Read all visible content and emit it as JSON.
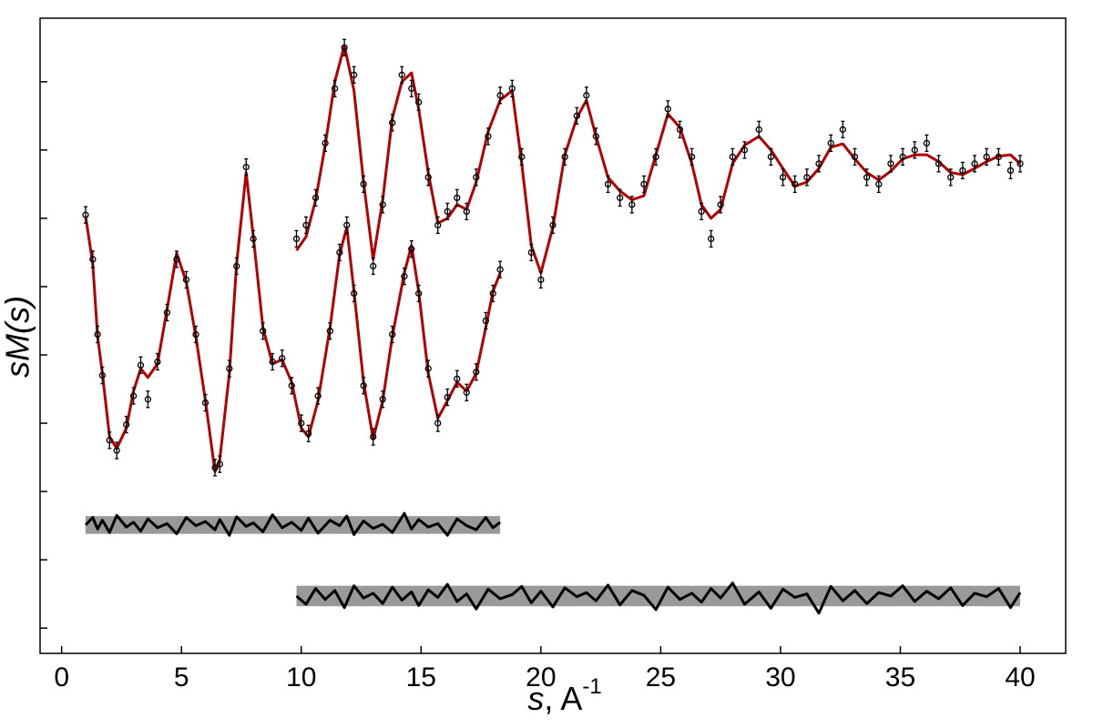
{
  "chart_data": {
    "type": "line",
    "xlabel": {
      "symbol": "s",
      "unit": ", A",
      "power": "-1"
    },
    "ylabel": "sM(s)",
    "xlim": [
      -0.9,
      41.9
    ],
    "ylim": [
      -0.37,
      8.93
    ],
    "xticks": [
      0,
      5,
      10,
      15,
      20,
      25,
      30,
      35,
      40
    ],
    "yticks": [
      0,
      1,
      2,
      3,
      4,
      5,
      6,
      7,
      8
    ],
    "ytick_labels": false,
    "series": [
      {
        "marker": "none",
        "color": "#b40000",
        "x": [
          1,
          1.3,
          1.5,
          1.7,
          2,
          2.3,
          2.7,
          3,
          3.3,
          3.6,
          4,
          4.4,
          4.8,
          5.2,
          5.6,
          6,
          6.4,
          6.6,
          7,
          7.3,
          7.7,
          8,
          8.4,
          8.8,
          9.2,
          9.6,
          10,
          10.3,
          10.7,
          11.2,
          11.6,
          11.9,
          12.2,
          12.6,
          13,
          13.4,
          13.8,
          14.3,
          14.6,
          14.9,
          15.3,
          15.7,
          16.1,
          16.5,
          16.9,
          17.3,
          17.7,
          18,
          18.3
        ],
        "values": [
          6.03,
          5.33,
          4.27,
          3.73,
          2.8,
          2.63,
          2.93,
          3.47,
          3.8,
          3.67,
          3.87,
          4.67,
          5.49,
          5.07,
          4.27,
          3.33,
          2.29,
          2.47,
          3.73,
          5.33,
          6.67,
          5.73,
          4.4,
          3.87,
          3.93,
          3.6,
          2.93,
          2.8,
          3.33,
          4.4,
          5.47,
          5.87,
          4.93,
          3.6,
          2.77,
          3.33,
          4.27,
          5.2,
          5.6,
          4.93,
          3.73,
          3.07,
          3.33,
          3.6,
          3.47,
          3.73,
          4.4,
          4.93,
          5.2
        ]
      },
      {
        "marker": "circle",
        "color": "#000000",
        "error": 0.12,
        "x": [
          1,
          1.3,
          1.5,
          1.7,
          2,
          2.3,
          2.7,
          3,
          3.3,
          3.6,
          4,
          4.4,
          4.8,
          5.2,
          5.6,
          6,
          6.4,
          6.6,
          7,
          7.3,
          7.7,
          8,
          8.4,
          8.8,
          9.2,
          9.6,
          10,
          10.3,
          10.7,
          11.2,
          11.6,
          11.9,
          12.2,
          12.6,
          13,
          13.4,
          13.8,
          14.3,
          14.6,
          14.9,
          15.3,
          15.7,
          16.1,
          16.5,
          16.9,
          17.3,
          17.7,
          18,
          18.3
        ],
        "values": [
          6.05,
          5.4,
          4.3,
          3.7,
          2.75,
          2.6,
          2.98,
          3.4,
          3.85,
          3.35,
          3.9,
          4.62,
          5.4,
          5.1,
          4.3,
          3.3,
          2.35,
          2.4,
          3.8,
          5.3,
          6.75,
          5.7,
          4.35,
          3.9,
          3.95,
          3.55,
          3.0,
          2.85,
          3.4,
          4.35,
          5.5,
          5.9,
          4.9,
          3.55,
          2.8,
          3.35,
          4.3,
          5.15,
          5.55,
          4.9,
          3.8,
          3.0,
          3.38,
          3.65,
          3.45,
          3.75,
          4.5,
          4.9,
          5.25
        ]
      },
      {
        "marker": "none",
        "color": "#b40000",
        "x": [
          9.8,
          10.2,
          10.6,
          11,
          11.4,
          11.8,
          12.2,
          12.6,
          13,
          13.4,
          13.8,
          14.2,
          14.6,
          14.9,
          15.3,
          15.7,
          16.1,
          16.5,
          16.9,
          17.3,
          17.8,
          18.3,
          18.8,
          19.2,
          19.6,
          20,
          20.5,
          21,
          21.5,
          21.9,
          22.3,
          22.8,
          23.3,
          23.8,
          24.3,
          24.8,
          25.3,
          25.8,
          26.3,
          26.7,
          27.1,
          27.5,
          28,
          28.5,
          29.1,
          29.6,
          30.1,
          30.6,
          31.1,
          31.6,
          32.1,
          32.6,
          33.1,
          33.6,
          34.1,
          34.6,
          35.1,
          35.6,
          36.1,
          36.6,
          37.1,
          37.6,
          38.1,
          38.6,
          39.1,
          39.6,
          40
        ],
        "values": [
          5.53,
          5.73,
          6.27,
          7.07,
          8.0,
          8.53,
          7.87,
          6.53,
          5.4,
          6.27,
          7.47,
          8.0,
          8.13,
          7.6,
          6.67,
          5.93,
          6.0,
          6.2,
          6.13,
          6.53,
          7.27,
          7.73,
          7.87,
          6.8,
          5.6,
          5.2,
          5.87,
          6.93,
          7.47,
          7.73,
          7.2,
          6.6,
          6.4,
          6.27,
          6.33,
          6.93,
          7.53,
          7.33,
          6.8,
          6.2,
          6.0,
          6.13,
          6.8,
          7.07,
          7.2,
          7.0,
          6.73,
          6.47,
          6.53,
          6.73,
          7.04,
          7.09,
          6.87,
          6.67,
          6.56,
          6.69,
          6.87,
          6.93,
          6.93,
          6.83,
          6.67,
          6.64,
          6.73,
          6.83,
          6.91,
          6.93,
          6.8
        ]
      },
      {
        "marker": "circle",
        "color": "#000000",
        "error": 0.12,
        "x": [
          9.8,
          10.2,
          10.6,
          11,
          11.4,
          11.8,
          12.2,
          12.6,
          13,
          13.4,
          13.8,
          14.2,
          14.6,
          14.9,
          15.3,
          15.7,
          16.1,
          16.5,
          16.9,
          17.3,
          17.8,
          18.3,
          18.8,
          19.2,
          19.6,
          20,
          20.5,
          21,
          21.5,
          21.9,
          22.3,
          22.8,
          23.3,
          23.8,
          24.3,
          24.8,
          25.3,
          25.8,
          26.3,
          26.7,
          27.1,
          27.5,
          28,
          28.5,
          29.1,
          29.6,
          30.1,
          30.6,
          31.1,
          31.6,
          32.1,
          32.6,
          33.1,
          33.6,
          34.1,
          34.6,
          35.1,
          35.6,
          36.1,
          36.6,
          37.1,
          37.6,
          38.1,
          38.6,
          39.1,
          39.6,
          40
        ],
        "values": [
          5.7,
          5.9,
          6.3,
          7.1,
          7.9,
          8.5,
          8.1,
          6.5,
          5.3,
          6.2,
          7.4,
          8.1,
          7.9,
          7.7,
          6.6,
          5.9,
          6.1,
          6.3,
          6.1,
          6.6,
          7.2,
          7.8,
          7.9,
          6.9,
          5.5,
          5.1,
          5.9,
          6.9,
          7.5,
          7.8,
          7.2,
          6.5,
          6.3,
          6.2,
          6.5,
          6.9,
          7.6,
          7.3,
          6.9,
          6.1,
          5.7,
          6.2,
          6.9,
          7.0,
          7.3,
          6.9,
          6.6,
          6.5,
          6.6,
          6.8,
          7.1,
          7.3,
          6.9,
          6.6,
          6.5,
          6.8,
          6.9,
          7.0,
          7.1,
          6.8,
          6.6,
          6.7,
          6.8,
          6.9,
          6.9,
          6.7,
          6.8
        ]
      },
      {
        "marker": "none",
        "color": "#000000",
        "band": [
          1.38,
          1.64
        ],
        "band_color": "#999999",
        "x": [
          1,
          1.3,
          1.5,
          1.7,
          2,
          2.3,
          2.7,
          3,
          3.3,
          3.6,
          4,
          4.4,
          4.8,
          5.2,
          5.6,
          6,
          6.4,
          6.6,
          7,
          7.3,
          7.7,
          8,
          8.4,
          8.8,
          9.2,
          9.6,
          10,
          10.3,
          10.7,
          11.2,
          11.6,
          11.9,
          12.2,
          12.6,
          13,
          13.4,
          13.8,
          14.3,
          14.6,
          14.9,
          15.3,
          15.7,
          16.1,
          16.5,
          16.9,
          17.3,
          17.7,
          18,
          18.3
        ],
        "values": [
          1.51,
          1.62,
          1.45,
          1.58,
          1.4,
          1.65,
          1.48,
          1.55,
          1.42,
          1.6,
          1.47,
          1.53,
          1.38,
          1.62,
          1.5,
          1.56,
          1.44,
          1.59,
          1.36,
          1.63,
          1.49,
          1.54,
          1.41,
          1.66,
          1.47,
          1.55,
          1.43,
          1.61,
          1.39,
          1.58,
          1.5,
          1.64,
          1.37,
          1.57,
          1.46,
          1.52,
          1.4,
          1.68,
          1.45,
          1.59,
          1.48,
          1.53,
          1.36,
          1.6,
          1.5,
          1.44,
          1.62,
          1.47,
          1.55
        ]
      },
      {
        "marker": "none",
        "color": "#000000",
        "band": [
          0.32,
          0.62
        ],
        "band_color": "#999999",
        "x": [
          9.8,
          10.2,
          10.6,
          11,
          11.4,
          11.8,
          12.2,
          12.6,
          13,
          13.4,
          13.8,
          14.2,
          14.6,
          14.9,
          15.3,
          15.7,
          16.1,
          16.5,
          16.9,
          17.3,
          17.8,
          18.3,
          18.8,
          19.2,
          19.6,
          20,
          20.5,
          21,
          21.5,
          21.9,
          22.3,
          22.8,
          23.3,
          23.8,
          24.3,
          24.8,
          25.3,
          25.8,
          26.3,
          26.7,
          27.1,
          27.5,
          28,
          28.5,
          29.1,
          29.6,
          30.1,
          30.6,
          31.1,
          31.6,
          32.1,
          32.6,
          33.1,
          33.6,
          34.1,
          34.6,
          35.1,
          35.6,
          36.1,
          36.6,
          37.1,
          37.6,
          38.1,
          38.6,
          39.1,
          39.6,
          40
        ],
        "values": [
          0.47,
          0.35,
          0.58,
          0.42,
          0.55,
          0.3,
          0.62,
          0.44,
          0.51,
          0.36,
          0.6,
          0.41,
          0.53,
          0.33,
          0.56,
          0.45,
          0.64,
          0.39,
          0.5,
          0.28,
          0.57,
          0.43,
          0.49,
          0.61,
          0.37,
          0.54,
          0.31,
          0.59,
          0.46,
          0.52,
          0.4,
          0.63,
          0.34,
          0.55,
          0.48,
          0.27,
          0.6,
          0.42,
          0.51,
          0.38,
          0.58,
          0.44,
          0.66,
          0.35,
          0.53,
          0.29,
          0.57,
          0.45,
          0.5,
          0.22,
          0.61,
          0.4,
          0.55,
          0.36,
          0.52,
          0.47,
          0.62,
          0.39,
          0.54,
          0.43,
          0.59,
          0.33,
          0.51,
          0.46,
          0.58,
          0.3,
          0.52
        ]
      }
    ]
  }
}
